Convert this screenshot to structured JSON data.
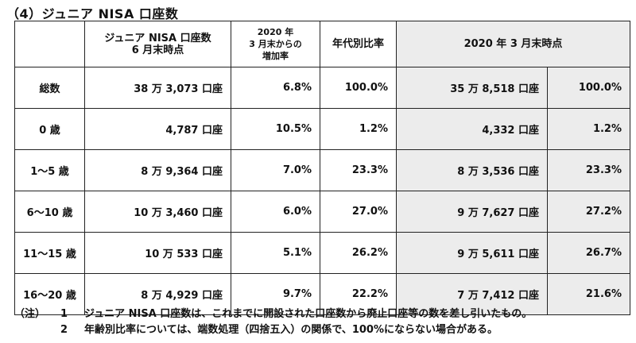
{
  "title": "（4）ジュニア NISA 口座数",
  "table": {
    "header": {
      "col1": "ジュニア NISA 口座数\n6 月末時点",
      "col2": "2020 年\n3 月末からの\n増加率",
      "col3": "年代別比率",
      "col4": "2020 年 3 月末時点"
    },
    "rows": [
      {
        "label": "総数",
        "count": "38 万 3,073 口座",
        "growth": "6.8%",
        "ratio": "100.0%",
        "prev_count": "35 万 8,518 口座",
        "prev_ratio": "100.0%"
      },
      {
        "label": "0 歳",
        "count": "4,787 口座",
        "growth": "10.5%",
        "ratio": "1.2%",
        "prev_count": "4,332 口座",
        "prev_ratio": "1.2%"
      },
      {
        "label": "1～5 歳",
        "count": "8 万 9,364 口座",
        "growth": "7.0%",
        "ratio": "23.3%",
        "prev_count": "8 万 3,536 口座",
        "prev_ratio": "23.3%"
      },
      {
        "label": "6～10 歳",
        "count": "10 万 3,460 口座",
        "growth": "6.0%",
        "ratio": "27.0%",
        "prev_count": "9 万 7,627 口座",
        "prev_ratio": "27.2%"
      },
      {
        "label": "11～15 歳",
        "count": "10 万 533 口座",
        "growth": "5.1%",
        "ratio": "26.2%",
        "prev_count": "9 万 5,611 口座",
        "prev_ratio": "26.7%"
      },
      {
        "label": "16～20 歳",
        "count": "8 万 4,929 口座",
        "growth": "9.7%",
        "ratio": "22.2%",
        "prev_count": "7 万 7,412 口座",
        "prev_ratio": "21.6%"
      }
    ]
  },
  "notes": {
    "prefix": "（注）",
    "items": [
      {
        "num": "1",
        "text": "ジュニア NISA 口座数は、これまでに開設された口座数から廃止口座等の数を差し引いたもの。"
      },
      {
        "num": "2",
        "text": "年齢別比率については、端数処理（四捨五入）の関係で、100%にならない場合がある。"
      }
    ]
  }
}
